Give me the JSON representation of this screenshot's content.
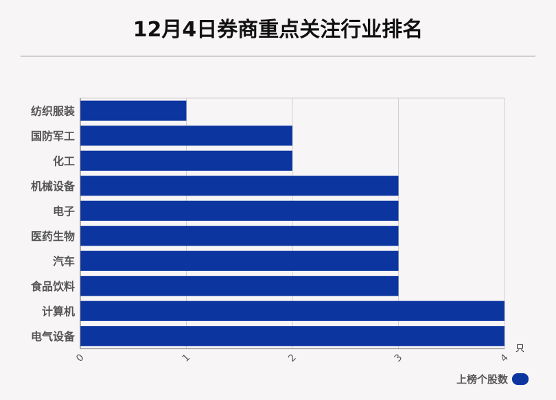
{
  "title": "12月4日券商重点关注行业排名",
  "colors": {
    "bar": "#0c35a0",
    "grid": "#d0d0d0",
    "axis": "#666666",
    "text": "#555555"
  },
  "chart_data": {
    "type": "bar",
    "orientation": "horizontal",
    "title": "12月4日券商重点关注行业排名",
    "categories": [
      "纺织服装",
      "国防军工",
      "化工",
      "机械设备",
      "电子",
      "医药生物",
      "汽车",
      "食品饮料",
      "计算机",
      "电气设备"
    ],
    "series": [
      {
        "name": "上榜个股数",
        "values": [
          1,
          2,
          2,
          3,
          3,
          3,
          3,
          3,
          4,
          4
        ]
      }
    ],
    "xlim": [
      0,
      4
    ],
    "xticks": [
      "0",
      "1",
      "2",
      "3",
      "4"
    ],
    "xunit": "只",
    "grid": true,
    "legend_position": "bottom-right"
  }
}
